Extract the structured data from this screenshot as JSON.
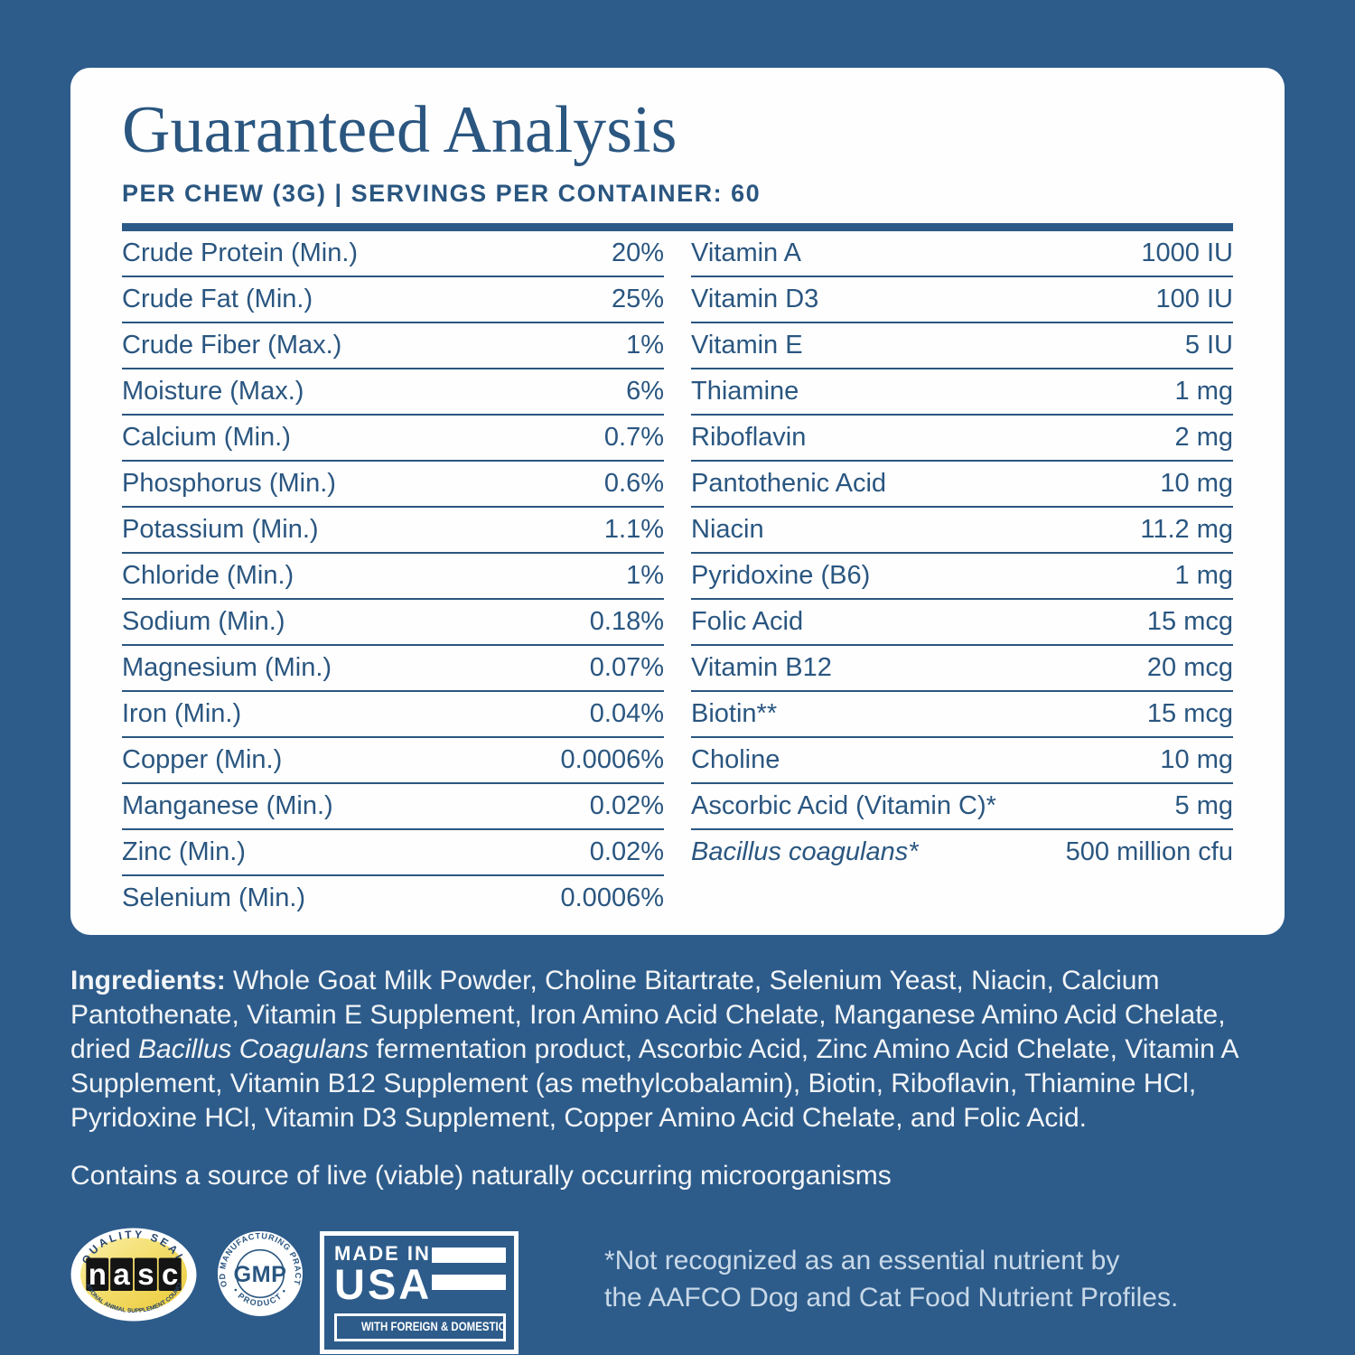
{
  "colors": {
    "background": "#2D5C8B",
    "card": "#FEFEFE",
    "ink": "#2A5680",
    "body_text": "#F3F5F7",
    "footnote_text": "#C9D9E8",
    "seal_yellow": "#EFD14F"
  },
  "header": {
    "title": "Guaranteed Analysis",
    "subtitle": "PER CHEW (3G) | SERVINGS PER CONTAINER: 60"
  },
  "analysis": {
    "left_column": [
      {
        "label": "Crude Protein (Min.)",
        "value": "20%"
      },
      {
        "label": "Crude Fat (Min.)",
        "value": "25%"
      },
      {
        "label": "Crude Fiber (Max.)",
        "value": "1%"
      },
      {
        "label": "Moisture (Max.)",
        "value": "6%"
      },
      {
        "label": "Calcium (Min.)",
        "value": "0.7%"
      },
      {
        "label": "Phosphorus (Min.)",
        "value": "0.6%"
      },
      {
        "label": "Potassium (Min.)",
        "value": "1.1%"
      },
      {
        "label": "Chloride (Min.)",
        "value": "1%"
      },
      {
        "label": "Sodium (Min.)",
        "value": "0.18%"
      },
      {
        "label": "Magnesium (Min.)",
        "value": "0.07%"
      },
      {
        "label": "Iron (Min.)",
        "value": "0.04%"
      },
      {
        "label": "Copper (Min.)",
        "value": "0.0006%"
      },
      {
        "label": "Manganese (Min.)",
        "value": "0.02%"
      },
      {
        "label": "Zinc (Min.)",
        "value": "0.02%"
      },
      {
        "label": "Selenium (Min.)",
        "value": "0.0006%"
      }
    ],
    "right_column": [
      {
        "label": "Vitamin A",
        "value": "1000 IU"
      },
      {
        "label": "Vitamin D3",
        "value": "100 IU"
      },
      {
        "label": "Vitamin E",
        "value": "5 IU"
      },
      {
        "label": "Thiamine",
        "value": "1 mg"
      },
      {
        "label": "Riboflavin",
        "value": "2 mg"
      },
      {
        "label": "Pantothenic Acid",
        "value": "10 mg"
      },
      {
        "label": "Niacin",
        "value": "11.2 mg"
      },
      {
        "label": "Pyridoxine (B6)",
        "value": "1 mg"
      },
      {
        "label": "Folic Acid",
        "value": "15 mcg"
      },
      {
        "label": "Vitamin B12",
        "value": "20 mcg"
      },
      {
        "label": "Biotin**",
        "value": "15 mcg"
      },
      {
        "label": "Choline",
        "value": "10 mg"
      },
      {
        "label": "Ascorbic Acid (Vitamin C)*",
        "value": "5 mg"
      },
      {
        "label": "Bacillus coagulans*",
        "value": "500 million cfu",
        "italic": true
      }
    ]
  },
  "ingredients": {
    "label": "Ingredients:",
    "text_before_italic": " Whole Goat Milk Powder, Choline Bitartrate, Selenium Yeast, Niacin, Calcium Pantothenate, Vitamin E Supplement, Iron Amino Acid Chelate, Manganese Amino Acid Chelate, dried ",
    "italic_text": "Bacillus Coagulans",
    "text_after_italic": " fermentation product, Ascorbic Acid, Zinc Amino Acid Chelate, Vitamin A Supplement, Vitamin B12 Supplement (as methylcobalamin), Biotin, Riboflavin, Thiamine HCl, Pyridoxine HCl, Vitamin D3 Supplement, Copper Amino Acid Chelate, and Folic Acid."
  },
  "microorganism_note": "Contains a source of live (viable) naturally occurring microorganisms",
  "footnote": {
    "line1": "*Not recognized as an essential nutrient by",
    "line2": "the AAFCO Dog and Cat Food Nutrient Profiles."
  },
  "seals": {
    "nasc": {
      "arc_top": "QUALITY SEAL",
      "letters": "nasc",
      "arc_bottom": "NATIONAL ANIMAL SUPPLEMENT COUNCIL"
    },
    "gmp": {
      "arc_top": "GOOD MANUFACTURING PRACTICE",
      "center": "GMP",
      "arc_bottom": "• PRODUCT •"
    },
    "made_in_usa": {
      "line1": "MADE IN",
      "line2": "USA",
      "strip": "WITH FOREIGN & DOMESTIC COMPONENTS"
    }
  }
}
